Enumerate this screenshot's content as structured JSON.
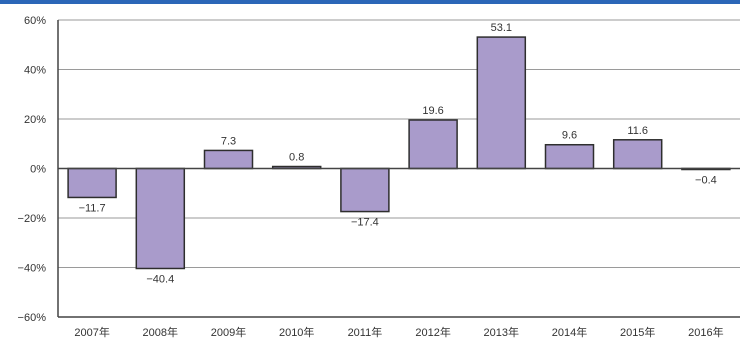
{
  "chart_data": {
    "type": "bar",
    "categories": [
      "2007年",
      "2008年",
      "2009年",
      "2010年",
      "2011年",
      "2012年",
      "2013年",
      "2014年",
      "2015年",
      "2016年"
    ],
    "values": [
      -11.7,
      -40.4,
      7.3,
      0.8,
      -17.4,
      19.6,
      53.1,
      9.6,
      11.6,
      -0.4
    ],
    "value_labels": [
      "−11.7",
      "−40.4",
      "7.3",
      "0.8",
      "−17.4",
      "19.6",
      "53.1",
      "9.6",
      "11.6",
      "−0.4"
    ],
    "y_ticks": [
      60,
      40,
      20,
      0,
      -20,
      -40,
      -60
    ],
    "y_tick_labels": [
      "60%",
      "40%",
      "20%",
      "0%",
      "−20%",
      "−40%",
      "−60%"
    ],
    "ylim": [
      -60,
      60
    ],
    "grid": true,
    "colors": {
      "bar_fill": "#a99bcb",
      "bar_stroke": "#2e2e2e",
      "grid": "#9a9a9a",
      "top_border": "#2b67b8"
    }
  }
}
